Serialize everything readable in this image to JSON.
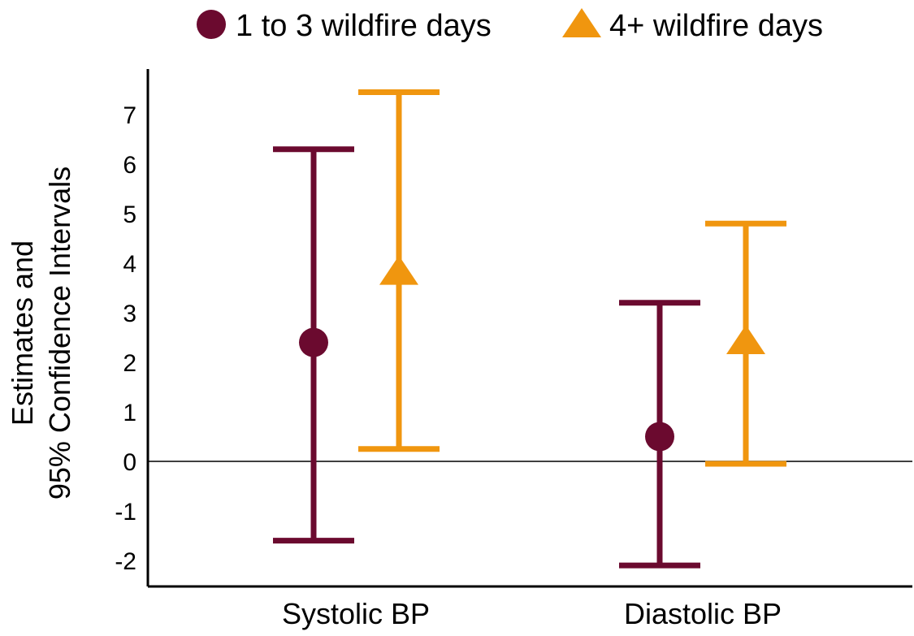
{
  "chart_data": {
    "type": "errorbar",
    "categories": [
      "Systolic BP",
      "Diastolic BP"
    ],
    "ylim": [
      -2.5,
      7.6
    ],
    "yticks": [
      -2,
      -1,
      0,
      1,
      2,
      3,
      4,
      5,
      6,
      7
    ],
    "ylabel_line1": "Estimates and",
    "ylabel_line2": "95% Confidence Intervals",
    "reference_line": 0,
    "legend_position": "top",
    "series": [
      {
        "name": "1 to 3 wildfire days",
        "marker": "circle",
        "color": "#6b0a2f",
        "estimates": [
          2.4,
          0.5
        ],
        "lower": [
          -1.6,
          -2.1
        ],
        "upper": [
          6.3,
          3.2
        ]
      },
      {
        "name": "4+ wildfire days",
        "marker": "triangle",
        "color": "#f0960f",
        "estimates": [
          3.8,
          2.4
        ],
        "lower": [
          0.25,
          -0.05
        ],
        "upper": [
          7.45,
          4.8
        ]
      }
    ]
  }
}
